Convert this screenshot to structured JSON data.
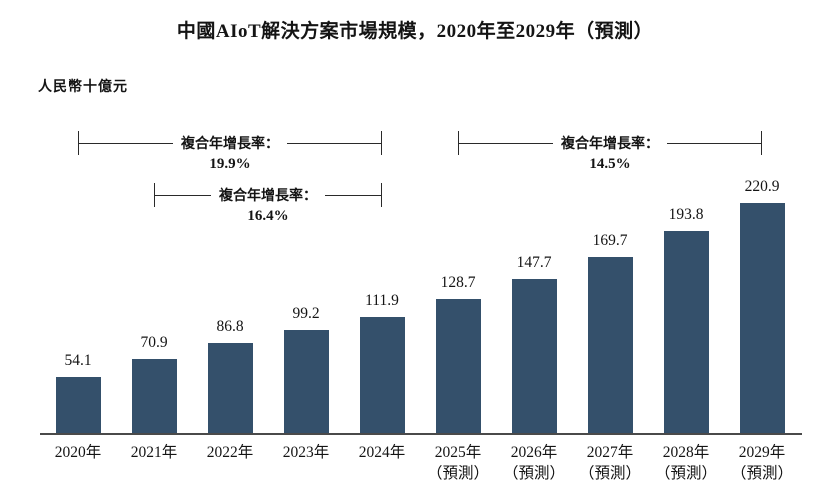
{
  "title": "中國AIoT解決方案市場規模，2020年至2029年（預測）",
  "unit_label": "人民幣十億元",
  "chart_data": {
    "type": "bar",
    "title": "中國AIoT解決方案市場規模，2020年至2029年（預測）",
    "ylabel": "人民幣十億元",
    "categories": [
      "2020年",
      "2021年",
      "2022年",
      "2023年",
      "2024年",
      "2025年",
      "2026年",
      "2027年",
      "2028年",
      "2029年"
    ],
    "category_sublabels": [
      "",
      "",
      "",
      "",
      "",
      "（預測）",
      "（預測）",
      "（預測）",
      "（預測）",
      "（預測）"
    ],
    "values": [
      54.1,
      70.9,
      86.8,
      99.2,
      111.9,
      128.7,
      147.7,
      169.7,
      193.8,
      220.9
    ],
    "value_labels": [
      "54.1",
      "70.9",
      "86.8",
      "99.2",
      "111.9",
      "128.7",
      "147.7",
      "169.7",
      "193.8",
      "220.9"
    ],
    "ylim": [
      0,
      240
    ],
    "grid": false,
    "legend": "none",
    "bar_color": "#34506B",
    "annotations": [
      {
        "label": "複合年增長率：",
        "value": "19.9%",
        "from": "2020年",
        "to": "2024年",
        "row": 0
      },
      {
        "label": "複合年增長率：",
        "value": "16.4%",
        "from": "2021年",
        "to": "2024年",
        "row": 1
      },
      {
        "label": "複合年增長率：",
        "value": "14.5%",
        "from": "2025年",
        "to": "2029年",
        "row": 0
      }
    ]
  }
}
